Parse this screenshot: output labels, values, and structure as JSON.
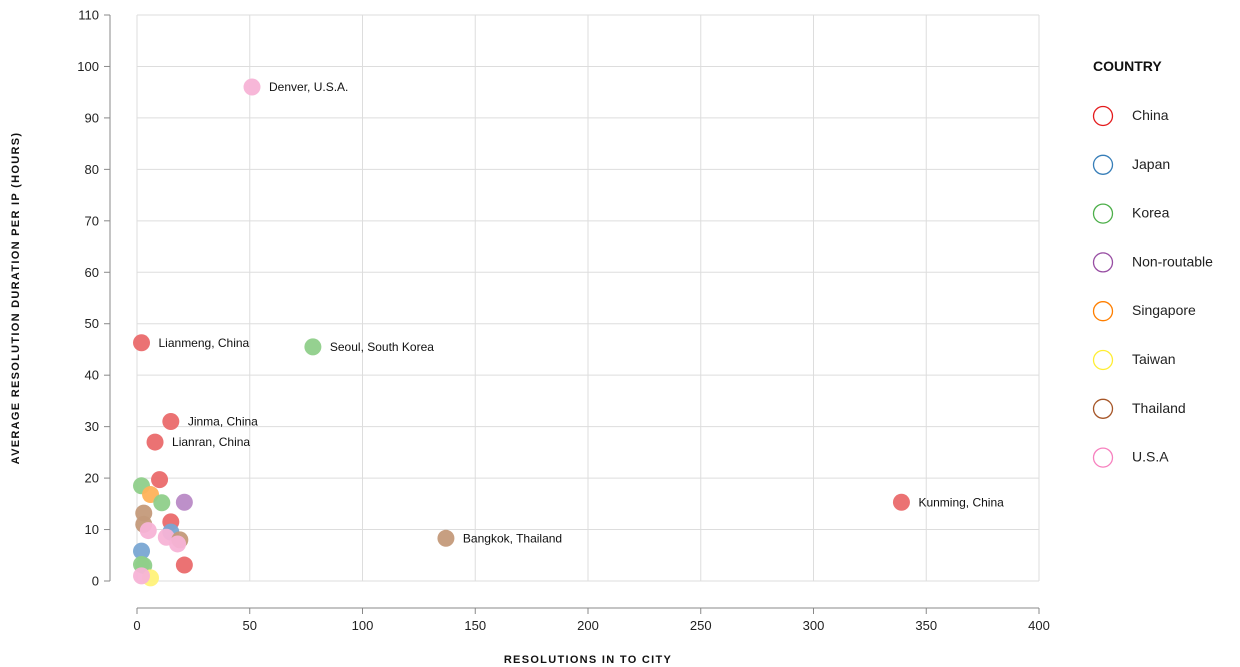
{
  "chart_data": {
    "type": "scatter",
    "xlabel": "RESOLUTIONS IN TO CITY",
    "ylabel": "AVERAGE RESOLUTION DURATION PER IP (HOURS)",
    "xlim": [
      0,
      400
    ],
    "ylim": [
      0,
      110
    ],
    "x_ticks": [
      0,
      50,
      100,
      150,
      200,
      250,
      300,
      350,
      400
    ],
    "y_ticks": [
      0,
      10,
      20,
      30,
      40,
      50,
      60,
      70,
      80,
      90,
      100,
      110
    ],
    "grid": true,
    "legend": {
      "title": "COUNTRY",
      "placement": "right",
      "items": [
        {
          "name": "China",
          "color": "#e41a1c"
        },
        {
          "name": "Japan",
          "color": "#377eb8"
        },
        {
          "name": "Korea",
          "color": "#4daf4a"
        },
        {
          "name": "Non-routable",
          "color": "#984ea3"
        },
        {
          "name": "Singapore",
          "color": "#ff7f00"
        },
        {
          "name": "Taiwan",
          "color": "#ffee33"
        },
        {
          "name": "Thailand",
          "color": "#a65628"
        },
        {
          "name": "U.S.A",
          "color": "#f781bf"
        }
      ]
    },
    "point_colors": {
      "China": "#ea6a6c",
      "Japan": "#79a7d3",
      "Korea": "#8fcf8a",
      "Non-routable": "#b98ac6",
      "Singapore": "#ffb25a",
      "Taiwan": "#fff27a",
      "Thailand": "#c49a7a",
      "U.S.A": "#f7b3d6"
    },
    "points": [
      {
        "x": 51,
        "y": 96,
        "country": "U.S.A",
        "label": "Denver, U.S.A."
      },
      {
        "x": 2,
        "y": 46.3,
        "country": "China",
        "label": "Lianmeng, China"
      },
      {
        "x": 78,
        "y": 45.5,
        "country": "Korea",
        "label": "Seoul, South Korea"
      },
      {
        "x": 15,
        "y": 31,
        "country": "China",
        "label": "Jinma, China"
      },
      {
        "x": 8,
        "y": 27,
        "country": "China",
        "label": "Lianran, China"
      },
      {
        "x": 339,
        "y": 15.3,
        "country": "China",
        "label": "Kunming, China"
      },
      {
        "x": 137,
        "y": 8.3,
        "country": "Thailand",
        "label": "Bangkok, Thailand"
      },
      {
        "x": 10,
        "y": 19.7,
        "country": "China",
        "label": ""
      },
      {
        "x": 2,
        "y": 18.5,
        "country": "Korea",
        "label": ""
      },
      {
        "x": 6,
        "y": 16.8,
        "country": "Singapore",
        "label": ""
      },
      {
        "x": 11,
        "y": 15.2,
        "country": "Korea",
        "label": ""
      },
      {
        "x": 21,
        "y": 15.3,
        "country": "Non-routable",
        "label": ""
      },
      {
        "x": 3,
        "y": 13.2,
        "country": "Thailand",
        "label": ""
      },
      {
        "x": 15,
        "y": 11.5,
        "country": "China",
        "label": ""
      },
      {
        "x": 3,
        "y": 11,
        "country": "Thailand",
        "label": ""
      },
      {
        "x": 5,
        "y": 9.8,
        "country": "U.S.A",
        "label": ""
      },
      {
        "x": 15,
        "y": 9.5,
        "country": "Japan",
        "label": ""
      },
      {
        "x": 13,
        "y": 8.5,
        "country": "U.S.A",
        "label": ""
      },
      {
        "x": 19,
        "y": 8,
        "country": "Thailand",
        "label": ""
      },
      {
        "x": 18,
        "y": 7.2,
        "country": "U.S.A",
        "label": ""
      },
      {
        "x": 2,
        "y": 5.8,
        "country": "Japan",
        "label": ""
      },
      {
        "x": 2,
        "y": 3.2,
        "country": "Korea",
        "label": ""
      },
      {
        "x": 3,
        "y": 3,
        "country": "Korea",
        "label": ""
      },
      {
        "x": 21,
        "y": 3.1,
        "country": "China",
        "label": ""
      },
      {
        "x": 6,
        "y": 0.6,
        "country": "Taiwan",
        "label": ""
      },
      {
        "x": 2,
        "y": 1,
        "country": "U.S.A",
        "label": ""
      }
    ]
  }
}
